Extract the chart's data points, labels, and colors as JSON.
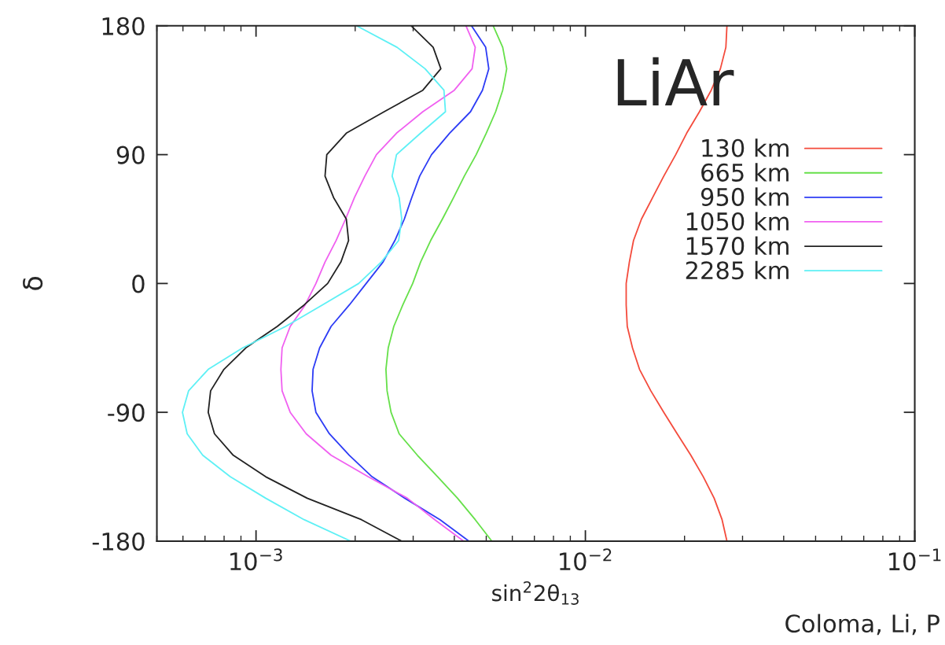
{
  "chart_data": {
    "type": "line",
    "xlabel": "sin$^{2}$2θ$_{13}$",
    "ylabel": "δ",
    "annotations": [
      "LiAr",
      "Coloma, Li, P"
    ],
    "log": "x",
    "xlim": [
      0.0005,
      0.1
    ],
    "xticks": [
      {
        "value": 0.001,
        "label": "10$^{−3}$"
      },
      {
        "value": 0.01,
        "label": "10$^{−2}$"
      },
      {
        "value": 0.1,
        "label": "10$^{−1}$"
      }
    ],
    "ylim": [
      -180,
      180
    ],
    "yticks": [
      -180,
      -90,
      0,
      90,
      180
    ],
    "legend": "right",
    "line_style": "solid",
    "series": [
      {
        "name": "130 km",
        "color": "#f44b3c",
        "x": [
          0.0269,
          0.0267,
          0.0257,
          0.0241,
          0.0222,
          0.0203,
          0.0188,
          0.0173,
          0.016,
          0.0148,
          0.014,
          0.0136,
          0.0133,
          0.0133,
          0.0134,
          0.0139,
          0.0146,
          0.0158,
          0.0173,
          0.019,
          0.0209,
          0.0228,
          0.0246,
          0.026,
          0.0269
        ],
        "values": [
          180,
          165,
          150,
          135,
          120,
          105,
          90,
          75,
          60,
          45,
          30,
          15,
          0,
          -15,
          -30,
          -45,
          -60,
          -75,
          -90,
          -105,
          -120,
          -135,
          -150,
          -165,
          -180
        ]
      },
      {
        "name": "665 km",
        "color": "#66e04a",
        "x": [
          0.00525,
          0.00561,
          0.00577,
          0.00561,
          0.00534,
          0.005,
          0.00466,
          0.00429,
          0.00398,
          0.00368,
          0.00339,
          0.00316,
          0.00299,
          0.00279,
          0.00262,
          0.00252,
          0.00248,
          0.0025,
          0.00257,
          0.00272,
          0.00309,
          0.00356,
          0.00409,
          0.00463,
          0.0052
        ],
        "values": [
          180,
          165,
          150,
          135,
          120,
          105,
          90,
          75,
          60,
          45,
          30,
          15,
          0,
          -15,
          -30,
          -45,
          -60,
          -75,
          -90,
          -105,
          -120,
          -135,
          -150,
          -165,
          -180
        ]
      },
      {
        "name": "950 km",
        "color": "#2d3cf5",
        "x": [
          0.00451,
          0.00498,
          0.00509,
          0.00487,
          0.00448,
          0.00387,
          0.00341,
          0.00314,
          0.00297,
          0.00282,
          0.00264,
          0.00243,
          0.00216,
          0.00192,
          0.00169,
          0.00156,
          0.00149,
          0.00148,
          0.00152,
          0.00167,
          0.00192,
          0.00225,
          0.00283,
          0.00362,
          0.00443
        ],
        "values": [
          180,
          165,
          150,
          135,
          120,
          105,
          90,
          75,
          60,
          45,
          30,
          15,
          0,
          -15,
          -30,
          -45,
          -60,
          -75,
          -90,
          -105,
          -120,
          -135,
          -150,
          -165,
          -180
        ]
      },
      {
        "name": "1050 km",
        "color": "#f060f0",
        "x": [
          0.00434,
          0.00463,
          0.00453,
          0.004,
          0.00321,
          0.00267,
          0.00232,
          0.00214,
          0.00199,
          0.00187,
          0.00175,
          0.00162,
          0.00152,
          0.00141,
          0.00127,
          0.0012,
          0.00119,
          0.0012,
          0.00127,
          0.00142,
          0.00169,
          0.00219,
          0.00288,
          0.00349,
          0.00427
        ],
        "values": [
          180,
          165,
          150,
          135,
          120,
          105,
          90,
          75,
          60,
          45,
          30,
          15,
          0,
          -15,
          -30,
          -45,
          -60,
          -75,
          -90,
          -105,
          -120,
          -135,
          -150,
          -165,
          -180
        ]
      },
      {
        "name": "1570 km",
        "color": "#222222",
        "x": [
          0.00296,
          0.00345,
          0.00364,
          0.00321,
          0.00245,
          0.00188,
          0.00164,
          0.00162,
          0.00172,
          0.00188,
          0.00191,
          0.00181,
          0.00165,
          0.0014,
          0.00116,
          0.000931,
          0.000799,
          0.000728,
          0.000716,
          0.000748,
          0.000853,
          0.00107,
          0.00143,
          0.00209,
          0.00277
        ],
        "values": [
          180,
          165,
          150,
          135,
          120,
          105,
          90,
          75,
          60,
          45,
          30,
          15,
          0,
          -15,
          -30,
          -45,
          -60,
          -75,
          -90,
          -105,
          -120,
          -135,
          -150,
          -165,
          -180
        ]
      },
      {
        "name": "2285 km",
        "color": "#5ef0f5",
        "x": [
          0.00202,
          0.00268,
          0.00326,
          0.00372,
          0.00376,
          0.00316,
          0.00267,
          0.00259,
          0.00272,
          0.00277,
          0.00271,
          0.0024,
          0.00205,
          0.00159,
          0.00123,
          0.000911,
          0.000716,
          0.000624,
          0.000598,
          0.000618,
          0.000689,
          0.000835,
          0.00107,
          0.0014,
          0.00194
        ],
        "values": [
          180,
          165,
          150,
          135,
          120,
          105,
          90,
          75,
          60,
          45,
          30,
          15,
          0,
          -15,
          -30,
          -45,
          -60,
          -75,
          -90,
          -105,
          -120,
          -135,
          -150,
          -165,
          -180
        ]
      }
    ]
  }
}
